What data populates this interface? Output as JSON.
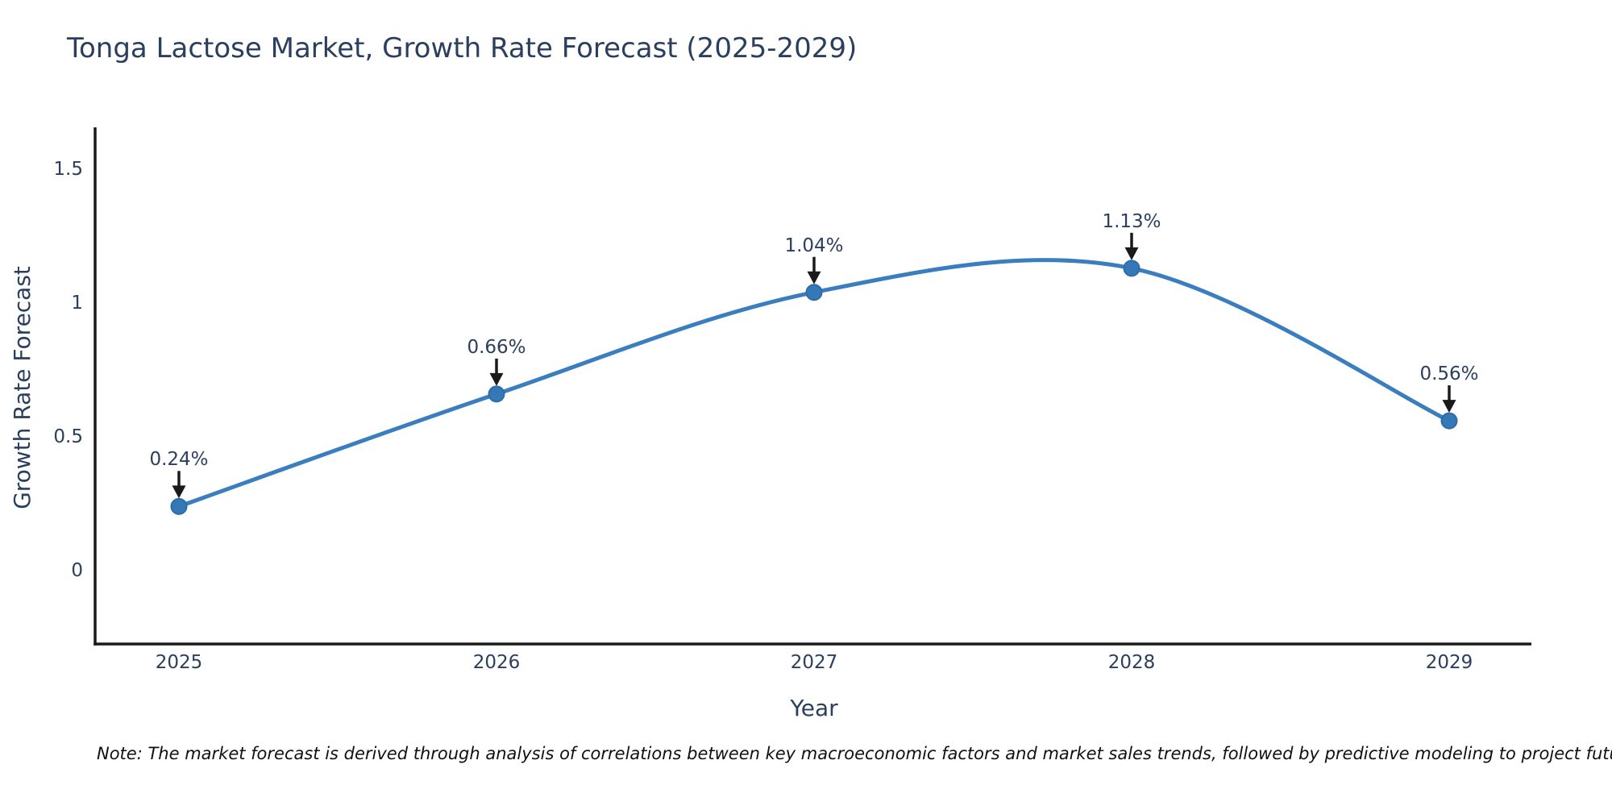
{
  "page": {
    "title": "Tonga Lactose Market, Growth Rate Forecast (2025-2029)",
    "note": "Note: The market forecast is derived through analysis of correlations between key macroeconomic factors and market sales trends, followed by predictive modeling to project future sales"
  },
  "chart_data": {
    "type": "line",
    "title": "Tonga Lactose Market, Growth Rate Forecast (2025-2029)",
    "xlabel": "Year",
    "ylabel": "Growth Rate Forecast",
    "categories": [
      "2025",
      "2026",
      "2027",
      "2028",
      "2029"
    ],
    "series": [
      {
        "name": "Growth Rate Forecast",
        "values": [
          0.24,
          0.66,
          1.04,
          1.13,
          0.56
        ]
      }
    ],
    "annotations": [
      "0.24%",
      "0.66%",
      "1.04%",
      "1.13%",
      "0.56%"
    ],
    "yticks": [
      "0",
      "0.5",
      "1",
      "1.5"
    ],
    "ytick_values": [
      0,
      0.5,
      1,
      1.5
    ],
    "ylim": [
      -0.27,
      1.65
    ],
    "line_shape": "spline",
    "grid": false,
    "legend_position": "none",
    "colors": {
      "line": "#3a7ebf",
      "marker": "#3578b8",
      "marker_edge": "#2e6da4",
      "axis": "#1a1a1a",
      "arrow": "#1a1a1a",
      "text": "#2a3f5f",
      "note_text": "#111111",
      "background": "#ffffff"
    }
  }
}
